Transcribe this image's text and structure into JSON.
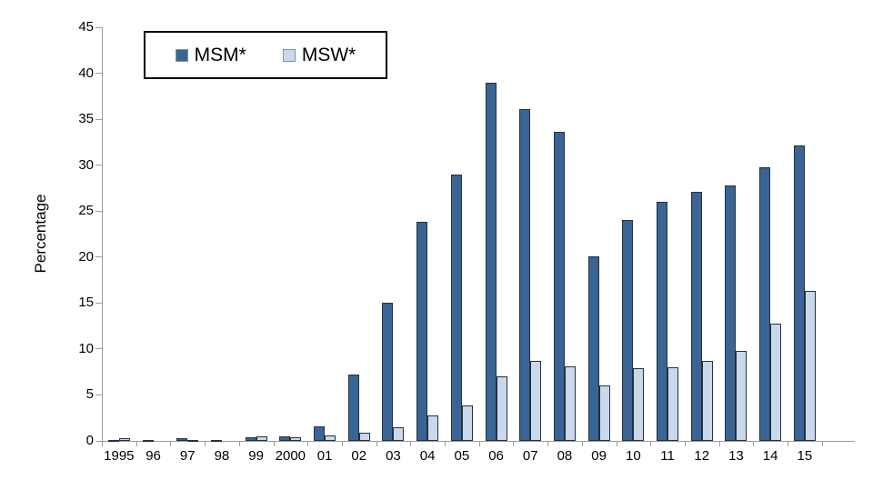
{
  "chart": {
    "ylabel": "Percentage",
    "colors": {
      "msm_fill": "#3a6494",
      "msw_fill": "#c9d9eb",
      "bar_border": "#26313d",
      "axis": "#9c9c9c"
    }
  },
  "chart_data": {
    "type": "bar",
    "title": "",
    "xlabel": "",
    "ylabel": "Percentage",
    "ylim": [
      0,
      45
    ],
    "ytick_step": 5,
    "grid": false,
    "legend_position": "top-left-inside",
    "categories": [
      "1995",
      "96",
      "97",
      "98",
      "99",
      "2000",
      "01",
      "02",
      "03",
      "04",
      "05",
      "06",
      "07",
      "08",
      "09",
      "10",
      "11",
      "12",
      "13",
      "14",
      "15"
    ],
    "series": [
      {
        "name": "MSM*",
        "color": "#3a6494",
        "values": [
          0.1,
          0.1,
          0.3,
          0.1,
          0.4,
          0.5,
          1.6,
          7.2,
          15.0,
          23.8,
          29.0,
          39.0,
          36.1,
          33.6,
          20.1,
          24.0,
          26.0,
          27.1,
          27.8,
          29.8,
          32.1
        ]
      },
      {
        "name": "MSW*",
        "color": "#c9d9eb",
        "values": [
          0.3,
          0.0,
          0.1,
          0.0,
          0.5,
          0.4,
          0.6,
          0.9,
          1.5,
          2.8,
          3.9,
          7.0,
          8.7,
          8.1,
          6.0,
          7.9,
          8.0,
          8.7,
          9.8,
          12.8,
          16.3
        ]
      }
    ]
  }
}
